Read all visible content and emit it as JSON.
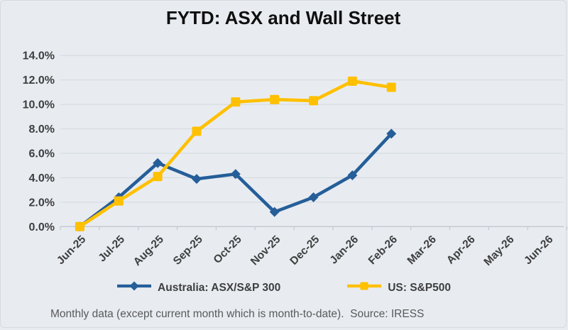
{
  "title": "FYTD: ASX and Wall Street",
  "footnote": "Monthly data (except current month which is month-to-date).  Source: IRESS",
  "colors": {
    "page_background": "#e8ecf1",
    "gridline": "#d6dbe1",
    "axis_line": "#c3c9d1",
    "axis_text": "#3e3e3e",
    "title_text": "#0f0f0f",
    "legend_text": "#3e3e3e",
    "footnote_text": "#595959",
    "series_asx": "#255e99",
    "series_sp500": "#ffc000"
  },
  "legend": [
    {
      "label": "Australia: ASX/S&P 300",
      "marker": "diamond",
      "color": "#255e99"
    },
    {
      "label": "US: S&P500",
      "marker": "square",
      "color": "#ffc000"
    }
  ],
  "chart_data": {
    "type": "line",
    "title": "FYTD: ASX and Wall Street",
    "categories": [
      "Jun-25",
      "Jul-25",
      "Aug-25",
      "Sep-25",
      "Oct-25",
      "Nov-25",
      "Dec-25",
      "Jan-26",
      "Feb-26",
      "Mar-26",
      "Apr-26",
      "May-26",
      "Jun-26"
    ],
    "series": [
      {
        "name": "Australia: ASX/S&P 300",
        "color": "#255e99",
        "marker": "diamond",
        "values": [
          0.0,
          2.4,
          5.2,
          3.9,
          4.3,
          1.2,
          2.4,
          4.2,
          7.6
        ]
      },
      {
        "name": "US: S&P500",
        "color": "#ffc000",
        "marker": "square",
        "values": [
          0.0,
          2.1,
          4.1,
          7.8,
          10.2,
          10.4,
          10.3,
          11.9,
          11.4
        ]
      }
    ],
    "ylabel": "",
    "xlabel": "",
    "ylim": [
      0,
      14
    ],
    "ytick_step": 2,
    "ytick_format": "percent-one-decimal",
    "xtick_rotation": -45,
    "grid": true,
    "legend_position": "bottom"
  }
}
